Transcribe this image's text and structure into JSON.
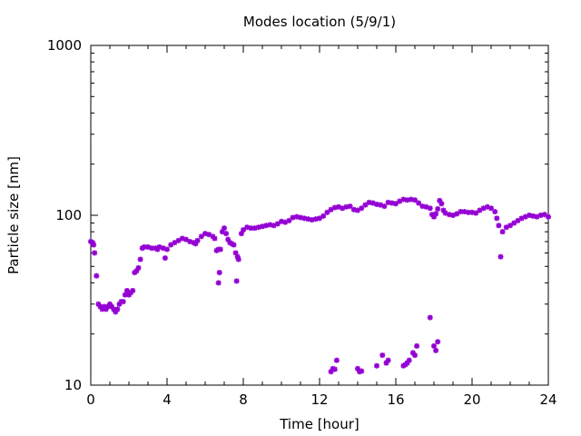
{
  "chart_data": {
    "type": "scatter",
    "title": "Modes location (5/9/1)",
    "xlabel": "Time [hour]",
    "ylabel": "Particle size [nm]",
    "xlim": [
      0,
      24
    ],
    "ylim": [
      10,
      1000
    ],
    "yscale": "log",
    "x_ticks": [
      "0",
      "4",
      "8",
      "12",
      "16",
      "20",
      "24"
    ],
    "y_ticks": [
      "10",
      "100",
      "1000"
    ],
    "grid": false,
    "marker_color": "#9400d3",
    "series": [
      {
        "points": [
          [
            0.0,
            70
          ],
          [
            0.1,
            69
          ],
          [
            0.15,
            67
          ],
          [
            0.2,
            60
          ],
          [
            0.3,
            44
          ],
          [
            0.4,
            30
          ],
          [
            0.5,
            29
          ],
          [
            0.6,
            28
          ],
          [
            0.7,
            29
          ],
          [
            0.8,
            28
          ],
          [
            0.9,
            29
          ],
          [
            1.0,
            30
          ],
          [
            1.1,
            29
          ],
          [
            1.2,
            28
          ],
          [
            1.3,
            27
          ],
          [
            1.4,
            28
          ],
          [
            1.5,
            30
          ],
          [
            1.6,
            31
          ],
          [
            1.7,
            31
          ],
          [
            1.8,
            34
          ],
          [
            1.9,
            36
          ],
          [
            2.0,
            34
          ],
          [
            2.1,
            35
          ],
          [
            2.2,
            36
          ],
          [
            2.3,
            46
          ],
          [
            2.4,
            47
          ],
          [
            2.5,
            49
          ],
          [
            2.6,
            55
          ],
          [
            2.7,
            64
          ],
          [
            2.8,
            65
          ],
          [
            3.0,
            65
          ],
          [
            3.2,
            64
          ],
          [
            3.4,
            64
          ],
          [
            3.5,
            63
          ],
          [
            3.6,
            65
          ],
          [
            3.8,
            64
          ],
          [
            3.9,
            56
          ],
          [
            4.0,
            63
          ],
          [
            4.2,
            67
          ],
          [
            4.4,
            69
          ],
          [
            4.6,
            71
          ],
          [
            4.8,
            73
          ],
          [
            5.0,
            72
          ],
          [
            5.2,
            70
          ],
          [
            5.4,
            69
          ],
          [
            5.5,
            68
          ],
          [
            5.6,
            71
          ],
          [
            5.8,
            75
          ],
          [
            6.0,
            78
          ],
          [
            6.2,
            77
          ],
          [
            6.4,
            75
          ],
          [
            6.5,
            73
          ],
          [
            6.6,
            62
          ],
          [
            6.7,
            63
          ],
          [
            6.8,
            63
          ],
          [
            6.75,
            46
          ],
          [
            6.7,
            40
          ],
          [
            6.9,
            80
          ],
          [
            7.0,
            84
          ],
          [
            7.1,
            78
          ],
          [
            7.2,
            72
          ],
          [
            7.3,
            69
          ],
          [
            7.4,
            68
          ],
          [
            7.5,
            67
          ],
          [
            7.6,
            60
          ],
          [
            7.7,
            57
          ],
          [
            7.75,
            55
          ],
          [
            7.65,
            41
          ],
          [
            7.9,
            78
          ],
          [
            8.0,
            82
          ],
          [
            8.2,
            85
          ],
          [
            8.4,
            84
          ],
          [
            8.6,
            84
          ],
          [
            8.8,
            85
          ],
          [
            9.0,
            86
          ],
          [
            9.2,
            87
          ],
          [
            9.4,
            88
          ],
          [
            9.6,
            87
          ],
          [
            9.8,
            89
          ],
          [
            10.0,
            92
          ],
          [
            10.2,
            91
          ],
          [
            10.4,
            93
          ],
          [
            10.6,
            97
          ],
          [
            10.8,
            98
          ],
          [
            11.0,
            97
          ],
          [
            11.2,
            96
          ],
          [
            11.4,
            95
          ],
          [
            11.6,
            94
          ],
          [
            11.8,
            95
          ],
          [
            12.0,
            96
          ],
          [
            12.2,
            99
          ],
          [
            12.4,
            104
          ],
          [
            12.6,
            108
          ],
          [
            12.8,
            111
          ],
          [
            13.0,
            112
          ],
          [
            13.2,
            110
          ],
          [
            13.4,
            112
          ],
          [
            13.6,
            113
          ],
          [
            13.8,
            108
          ],
          [
            14.0,
            107
          ],
          [
            14.2,
            110
          ],
          [
            14.4,
            115
          ],
          [
            14.6,
            119
          ],
          [
            14.8,
            118
          ],
          [
            15.0,
            116
          ],
          [
            15.2,
            115
          ],
          [
            15.4,
            113
          ],
          [
            15.6,
            119
          ],
          [
            15.8,
            118
          ],
          [
            16.0,
            117
          ],
          [
            16.2,
            121
          ],
          [
            16.4,
            124
          ],
          [
            16.6,
            123
          ],
          [
            16.8,
            124
          ],
          [
            17.0,
            123
          ],
          [
            17.2,
            118
          ],
          [
            17.4,
            113
          ],
          [
            17.6,
            112
          ],
          [
            17.8,
            110
          ],
          [
            17.9,
            101
          ],
          [
            18.0,
            98
          ],
          [
            18.1,
            102
          ],
          [
            18.2,
            109
          ],
          [
            18.3,
            122
          ],
          [
            18.4,
            117
          ],
          [
            18.5,
            107
          ],
          [
            18.6,
            103
          ],
          [
            18.8,
            101
          ],
          [
            19.0,
            100
          ],
          [
            19.2,
            102
          ],
          [
            19.4,
            105
          ],
          [
            19.6,
            105
          ],
          [
            19.8,
            104
          ],
          [
            20.0,
            104
          ],
          [
            20.2,
            103
          ],
          [
            20.4,
            107
          ],
          [
            20.6,
            110
          ],
          [
            20.8,
            112
          ],
          [
            21.0,
            110
          ],
          [
            21.2,
            105
          ],
          [
            21.3,
            96
          ],
          [
            21.4,
            87
          ],
          [
            21.5,
            57
          ],
          [
            21.6,
            80
          ],
          [
            21.8,
            85
          ],
          [
            22.0,
            87
          ],
          [
            22.2,
            90
          ],
          [
            22.4,
            93
          ],
          [
            22.6,
            96
          ],
          [
            22.8,
            98
          ],
          [
            23.0,
            100
          ],
          [
            23.2,
            99
          ],
          [
            23.4,
            98
          ],
          [
            23.6,
            100
          ],
          [
            23.8,
            101
          ],
          [
            24.0,
            98
          ],
          [
            12.6,
            12
          ],
          [
            12.7,
            12.5
          ],
          [
            12.8,
            12.4
          ],
          [
            12.9,
            14
          ],
          [
            14.0,
            12.5
          ],
          [
            14.1,
            12
          ],
          [
            14.2,
            12.1
          ],
          [
            15.0,
            13
          ],
          [
            15.3,
            15
          ],
          [
            15.5,
            13.5
          ],
          [
            15.6,
            14
          ],
          [
            16.4,
            13
          ],
          [
            16.5,
            13.2
          ],
          [
            16.6,
            13.5
          ],
          [
            16.7,
            14
          ],
          [
            16.9,
            15.5
          ],
          [
            17.0,
            15
          ],
          [
            17.1,
            17
          ],
          [
            17.8,
            25
          ],
          [
            18.0,
            17
          ],
          [
            18.1,
            16
          ],
          [
            18.2,
            18
          ]
        ]
      }
    ]
  }
}
